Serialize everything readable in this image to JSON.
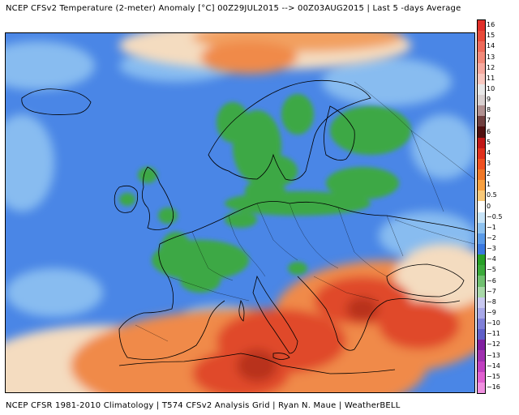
{
  "header": {
    "title": "NCEP  CFSv2 Temperature (2-meter) Anomaly   [°C] 00Z29JUL2015  -->  00Z03AUG2015  |  Last 5  -days Average"
  },
  "footer": {
    "credit": "NCEP  CFSR  1981-2010  Climatology  |  T574  CFSv2  Analysis  Grid  |  Ryan  N.  Maue  |  WeatherBELL"
  },
  "colors": {
    "ocean_base": "#4a86e6",
    "land_blue": "#3a78e0",
    "light_blue": "#8fc2f2",
    "green": "#3caa3c",
    "orange": "#f08a4a",
    "red": "#e04a2a",
    "dark_red": "#b8321e",
    "pale": "#f4dcc0",
    "coastline": "#000000"
  },
  "colorbar": {
    "labels": [
      "16",
      "15",
      "14",
      "13",
      "12",
      "11",
      "10",
      "9",
      "8",
      "7",
      "6",
      "5",
      "4",
      "3",
      "2",
      "1",
      "0.5",
      "0",
      "−0.5",
      "−1",
      "−2",
      "−3",
      "−4",
      "−5",
      "−6",
      "−7",
      "−8",
      "−9",
      "−10",
      "−11",
      "−12",
      "−13",
      "−14",
      "−15",
      "−16"
    ],
    "colors": [
      "#e0302a",
      "#e84a3a",
      "#ee6a5a",
      "#f28a7a",
      "#f6aaa0",
      "#f8c8c0",
      "#e8e8e8",
      "#d8d0d0",
      "#b09090",
      "#704040",
      "#501010",
      "#c01818",
      "#e0301c",
      "#f05020",
      "#f07828",
      "#f8a040",
      "#f8c878",
      "#ffffff",
      "#c8e4f8",
      "#8ec2f0",
      "#5a9ae8",
      "#3a78e0",
      "#28a028",
      "#3caa3c",
      "#70c070",
      "#a8d8a8",
      "#c8c8f0",
      "#a8a8e8",
      "#8080d8",
      "#6060c8",
      "#8020a0",
      "#a030b0",
      "#c040c0",
      "#e060d0",
      "#f090e0"
    ]
  },
  "map": {
    "projection": "regional",
    "region": "Europe",
    "features": [
      "Iceland",
      "British Isles",
      "Scandinavia",
      "Baltic region",
      "Western Europe",
      "Iberia",
      "Italy",
      "Balkans",
      "Turkey",
      "North Africa"
    ]
  }
}
